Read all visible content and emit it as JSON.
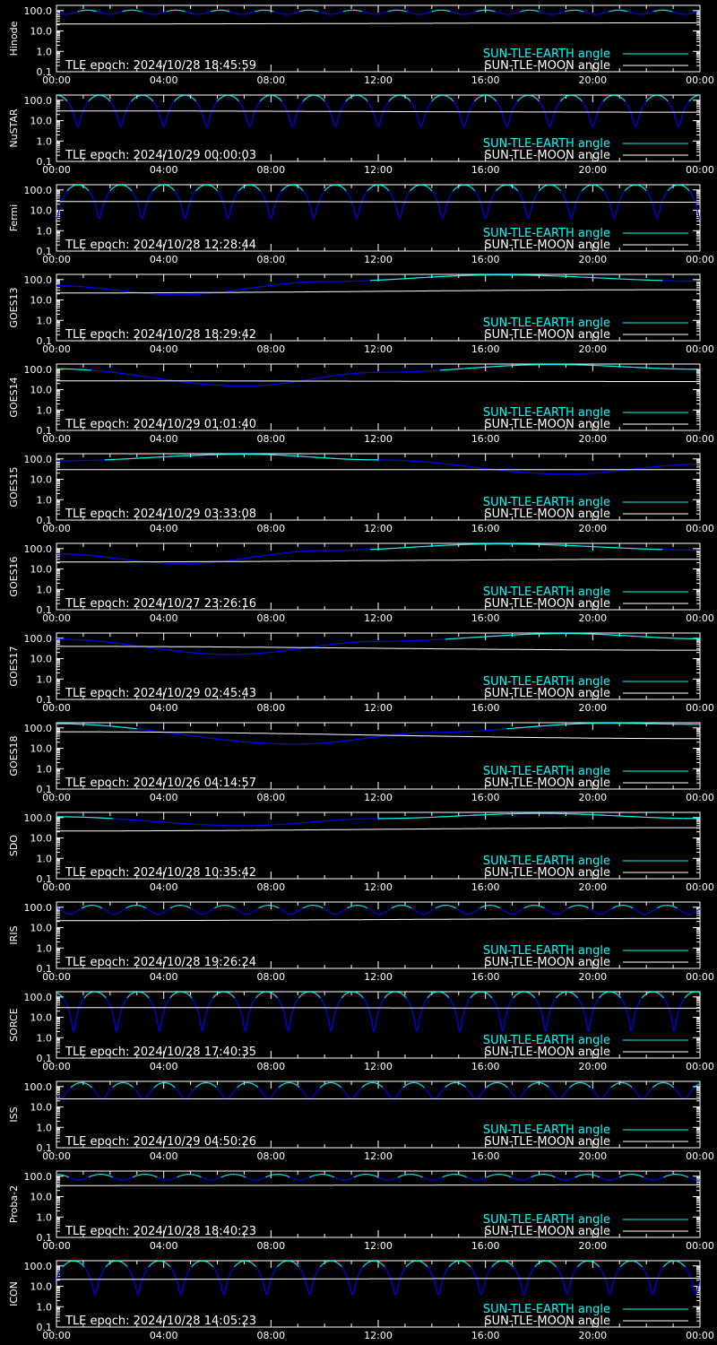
{
  "legend": {
    "earth_label": "SUN-TLE-EARTH angle",
    "moon_label": "SUN-TLE-MOON angle"
  },
  "colors": {
    "background": "#000000",
    "axes": "#ffffff",
    "earth_line": "#00ffff",
    "earth_line_low": "#0000ff",
    "moon_line": "#ffffff",
    "text": "#ffffff",
    "earth_text": "#00ffff"
  },
  "x_tick_labels": [
    "00:00",
    "04:00",
    "08:00",
    "12:00",
    "16:00",
    "20:00",
    "00:00"
  ],
  "y_tick_labels": [
    "100.0",
    "10.0",
    "1.0",
    "0.1"
  ],
  "chart_data": [
    {
      "type": "line",
      "satellite": "Hinode",
      "epoch_text": "TLE epoch: 2024/10/28 18:45:59",
      "ylog": true,
      "ylim": [
        0.1,
        180
      ],
      "xlim": [
        0,
        24
      ],
      "series": [
        {
          "name": "SUN-TLE-EARTH angle",
          "model": "orbital",
          "baseline": 85,
          "amplitude": 20,
          "period_hours": 1.65,
          "phase": 0.3
        },
        {
          "name": "SUN-TLE-MOON angle",
          "x": [
            0,
            24
          ],
          "y": [
            22,
            25
          ]
        }
      ]
    },
    {
      "type": "line",
      "satellite": "NuSTAR",
      "epoch_text": "TLE epoch: 2024/10/29 00:00:03",
      "ylog": true,
      "ylim": [
        0.1,
        180
      ],
      "xlim": [
        0,
        24
      ],
      "series": [
        {
          "name": "SUN-TLE-EARTH angle",
          "model": "orbital",
          "baseline": 90,
          "amplitude": 85,
          "period_hours": 1.6,
          "phase": 0.0
        },
        {
          "name": "SUN-TLE-MOON angle",
          "x": [
            0,
            24
          ],
          "y": [
            30,
            26
          ]
        }
      ]
    },
    {
      "type": "line",
      "satellite": "Fermi",
      "epoch_text": "TLE epoch: 2024/10/28 12:28:44",
      "ylog": true,
      "ylim": [
        0.1,
        180
      ],
      "xlim": [
        0,
        24
      ],
      "series": [
        {
          "name": "SUN-TLE-EARTH angle",
          "model": "orbital",
          "baseline": 90,
          "amplitude": 86,
          "period_hours": 1.6,
          "phase": 0.5
        },
        {
          "name": "SUN-TLE-MOON angle",
          "x": [
            0,
            24
          ],
          "y": [
            27,
            25
          ]
        }
      ]
    },
    {
      "type": "line",
      "satellite": "GOES13",
      "epoch_text": "TLE epoch: 2024/10/28 18:29:42",
      "ylog": true,
      "ylim": [
        0.1,
        180
      ],
      "xlim": [
        0,
        24
      ],
      "series": [
        {
          "name": "SUN-TLE-EARTH angle",
          "x": [
            0,
            4.5,
            10,
            16.5,
            24
          ],
          "y": [
            50,
            18,
            80,
            170,
            85
          ]
        },
        {
          "name": "SUN-TLE-MOON angle",
          "x": [
            0,
            24
          ],
          "y": [
            22,
            32
          ]
        }
      ]
    },
    {
      "type": "line",
      "satellite": "GOES14",
      "epoch_text": "TLE epoch: 2024/10/29 01:01:40",
      "ylog": true,
      "ylim": [
        0.1,
        180
      ],
      "xlim": [
        0,
        24
      ],
      "series": [
        {
          "name": "SUN-TLE-EARTH angle",
          "x": [
            0,
            7,
            12,
            18.5,
            24
          ],
          "y": [
            105,
            15,
            70,
            170,
            100
          ]
        },
        {
          "name": "SUN-TLE-MOON angle",
          "x": [
            0,
            24
          ],
          "y": [
            27,
            25
          ]
        }
      ]
    },
    {
      "type": "line",
      "satellite": "GOES15",
      "epoch_text": "TLE epoch: 2024/10/29 03:33:08",
      "ylog": true,
      "ylim": [
        0.1,
        180
      ],
      "xlim": [
        0,
        24
      ],
      "series": [
        {
          "name": "SUN-TLE-EARTH angle",
          "x": [
            0,
            7,
            12,
            19,
            24
          ],
          "y": [
            80,
            170,
            90,
            18,
            55
          ]
        },
        {
          "name": "SUN-TLE-MOON angle",
          "x": [
            0,
            24
          ],
          "y": [
            30,
            30
          ]
        }
      ]
    },
    {
      "type": "line",
      "satellite": "GOES16",
      "epoch_text": "TLE epoch: 2024/10/27 23:26:16",
      "ylog": true,
      "ylim": [
        0.1,
        180
      ],
      "xlim": [
        0,
        24
      ],
      "series": [
        {
          "name": "SUN-TLE-EARTH angle",
          "x": [
            0,
            4.7,
            10,
            16.5,
            24
          ],
          "y": [
            55,
            18,
            80,
            170,
            85
          ]
        },
        {
          "name": "SUN-TLE-MOON angle",
          "x": [
            0,
            24
          ],
          "y": [
            22,
            30
          ]
        }
      ]
    },
    {
      "type": "line",
      "satellite": "GOES17",
      "epoch_text": "TLE epoch: 2024/10/29 02:45:43",
      "ylog": true,
      "ylim": [
        0.1,
        180
      ],
      "xlim": [
        0,
        24
      ],
      "series": [
        {
          "name": "SUN-TLE-EARTH angle",
          "x": [
            0,
            6.5,
            12,
            19,
            24
          ],
          "y": [
            90,
            16,
            70,
            170,
            95
          ]
        },
        {
          "name": "SUN-TLE-MOON angle",
          "x": [
            0,
            24
          ],
          "y": [
            40,
            26
          ]
        }
      ]
    },
    {
      "type": "line",
      "satellite": "GOES18",
      "epoch_text": "TLE epoch: 2024/10/26 04:14:57",
      "ylog": true,
      "ylim": [
        0.1,
        180
      ],
      "xlim": [
        0,
        24
      ],
      "series": [
        {
          "name": "SUN-TLE-EARTH angle",
          "x": [
            0,
            9,
            14,
            20.5,
            24
          ],
          "y": [
            160,
            16,
            60,
            170,
            150
          ]
        },
        {
          "name": "SUN-TLE-MOON angle",
          "x": [
            0,
            24
          ],
          "y": [
            65,
            30
          ]
        }
      ]
    },
    {
      "type": "line",
      "satellite": "SDO",
      "epoch_text": "TLE epoch: 2024/10/28 10:35:42",
      "ylog": true,
      "ylim": [
        0.1,
        180
      ],
      "xlim": [
        0,
        24
      ],
      "series": [
        {
          "name": "SUN-TLE-EARTH angle",
          "x": [
            0,
            7,
            12,
            18,
            24
          ],
          "y": [
            110,
            40,
            90,
            160,
            90
          ]
        },
        {
          "name": "SUN-TLE-MOON angle",
          "x": [
            0,
            24
          ],
          "y": [
            22,
            32
          ]
        }
      ]
    },
    {
      "type": "line",
      "satellite": "IRIS",
      "epoch_text": "TLE epoch: 2024/10/28 19:26:24",
      "ylog": true,
      "ylim": [
        0.1,
        180
      ],
      "xlim": [
        0,
        24
      ],
      "series": [
        {
          "name": "SUN-TLE-EARTH angle",
          "model": "orbital",
          "baseline": 85,
          "amplitude": 40,
          "period_hours": 1.65,
          "phase": 0.2
        },
        {
          "name": "SUN-TLE-MOON angle",
          "x": [
            0,
            24
          ],
          "y": [
            22,
            28
          ]
        }
      ]
    },
    {
      "type": "line",
      "satellite": "SORCE",
      "epoch_text": "TLE epoch: 2024/10/28 17:40:35",
      "ylog": true,
      "ylim": [
        0.1,
        180
      ],
      "xlim": [
        0,
        24
      ],
      "series": [
        {
          "name": "SUN-TLE-EARTH angle",
          "model": "orbital",
          "baseline": 90,
          "amplitude": 88,
          "period_hours": 1.6,
          "phase": 0.1
        },
        {
          "name": "SUN-TLE-MOON angle",
          "x": [
            0,
            24
          ],
          "y": [
            30,
            28
          ]
        }
      ]
    },
    {
      "type": "line",
      "satellite": "ISS",
      "epoch_text": "TLE epoch: 2024/10/29 04:50:26",
      "ylog": true,
      "ylim": [
        0.1,
        180
      ],
      "xlim": [
        0,
        24
      ],
      "series": [
        {
          "name": "SUN-TLE-EARTH angle",
          "model": "orbital",
          "baseline": 90,
          "amplitude": 65,
          "period_hours": 1.55,
          "phase": 0.4
        },
        {
          "name": "SUN-TLE-MOON angle",
          "x": [
            0,
            24
          ],
          "y": [
            25,
            25
          ]
        }
      ]
    },
    {
      "type": "line",
      "satellite": "Proba-2",
      "epoch_text": "TLE epoch: 2024/10/28 18:40:23",
      "ylog": true,
      "ylim": [
        0.1,
        180
      ],
      "xlim": [
        0,
        24
      ],
      "series": [
        {
          "name": "SUN-TLE-EARTH angle",
          "model": "orbital",
          "baseline": 95,
          "amplitude": 30,
          "period_hours": 1.65,
          "phase": 0.0
        },
        {
          "name": "SUN-TLE-MOON angle",
          "x": [
            0,
            24
          ],
          "y": [
            35,
            38
          ]
        }
      ]
    },
    {
      "type": "line",
      "satellite": "ICON",
      "epoch_text": "TLE epoch: 2024/10/28 14:05:23",
      "ylog": true,
      "ylim": [
        0.1,
        180
      ],
      "xlim": [
        0,
        24
      ],
      "series": [
        {
          "name": "SUN-TLE-EARTH angle",
          "model": "orbital",
          "baseline": 90,
          "amplitude": 86,
          "period_hours": 1.6,
          "phase": 0.6
        },
        {
          "name": "SUN-TLE-MOON angle",
          "x": [
            0,
            24
          ],
          "y": [
            22,
            25
          ]
        }
      ]
    }
  ]
}
